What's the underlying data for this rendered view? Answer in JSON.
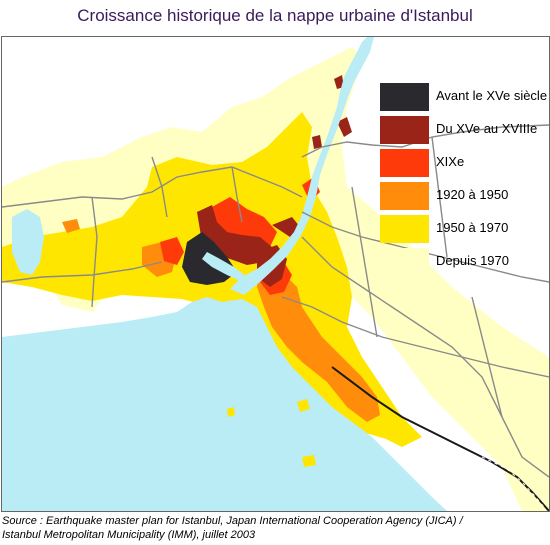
{
  "title": "Croissance historique de la nappe urbaine d'Istanbul",
  "legend": [
    {
      "label": "Avant le XVe siècle",
      "color": "#2a2a2e"
    },
    {
      "label": "Du XVe au XVIIIe",
      "color": "#9b2418"
    },
    {
      "label": "XIXe",
      "color": "#ff3a0a"
    },
    {
      "label": "1920 à 1950",
      "color": "#ff8c0a"
    },
    {
      "label": "1950 à 1970",
      "color": "#ffe600"
    },
    {
      "label": "Depuis 1970",
      "color": "#ffffc4"
    }
  ],
  "colors": {
    "water": "#b9ecf5",
    "land": "#ffffff",
    "roads": "#8a8a8a",
    "railway": "#1a1a1a"
  },
  "source": {
    "line1": "Source : Earthquake master plan for Istanbul, Japan International Cooperation Agency (JICA) /",
    "line2": "Istanbul Metropolitan Municipality (IMM), juillet 2003"
  }
}
